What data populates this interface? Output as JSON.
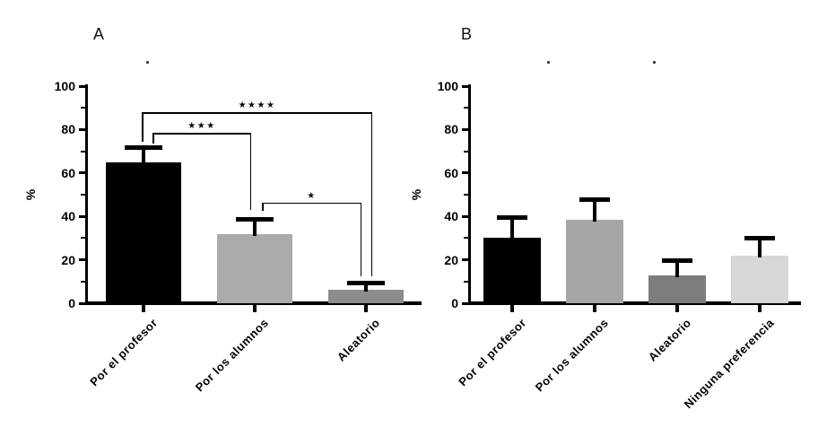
{
  "figure": {
    "background": "#ffffff",
    "axis_color": "#000000",
    "error_bar_color": "#000000",
    "significance_color": "#0a0a14"
  },
  "chart_data": [
    {
      "type": "bar",
      "panel_label": "A",
      "ylabel": "%",
      "ylim": [
        0,
        100
      ],
      "yticks": [
        0,
        20,
        40,
        60,
        80,
        100
      ],
      "minor_yticks": [
        10,
        30,
        50,
        70,
        90
      ],
      "grid": false,
      "legend": "none",
      "categories": [
        "Por el profesor",
        "Por los alumnos",
        "Aleatorio"
      ],
      "values": [
        65,
        32,
        6
      ],
      "errors_up": [
        7,
        7,
        3.5
      ],
      "bar_colors": [
        "#000000",
        "#ababab",
        "#8c8c8c"
      ],
      "significance": [
        {
          "label": "****",
          "glyphs": "★★★★",
          "left_bar": 0,
          "right_bar": 2,
          "line_pct": 88,
          "left_drop_pct": 74.5,
          "right_drop_pct": 12.5,
          "left_dx": -2,
          "right_dx": 7
        },
        {
          "label": "***",
          "glyphs": "★★★",
          "left_bar": 0,
          "right_bar": 1,
          "line_pct": 78.5,
          "left_drop_pct": 73.5,
          "right_drop_pct": 43,
          "left_dx": 10,
          "right_dx": -4
        },
        {
          "label": "*",
          "glyphs": "★",
          "left_bar": 1,
          "right_bar": 2,
          "line_pct": 46.3,
          "left_drop_pct": 42.5,
          "right_drop_pct": 12.5,
          "left_dx": 8,
          "right_dx": -5
        }
      ]
    },
    {
      "type": "bar",
      "panel_label": "B",
      "ylabel": "%",
      "ylim": [
        0,
        100
      ],
      "yticks": [
        0,
        20,
        40,
        60,
        80,
        100
      ],
      "minor_yticks": [
        10,
        30,
        50,
        70,
        90
      ],
      "grid": false,
      "legend": "none",
      "categories": [
        "Por el profesor",
        "Por los alumnos",
        "Aleatorio",
        "Ninguna preferencia"
      ],
      "values": [
        30,
        38.5,
        13,
        22
      ],
      "errors_up": [
        9.5,
        9.5,
        7,
        8
      ],
      "bar_colors": [
        "#000000",
        "#a6a6a6",
        "#7d7d7d",
        "#d7d7d7"
      ],
      "significance": []
    }
  ]
}
